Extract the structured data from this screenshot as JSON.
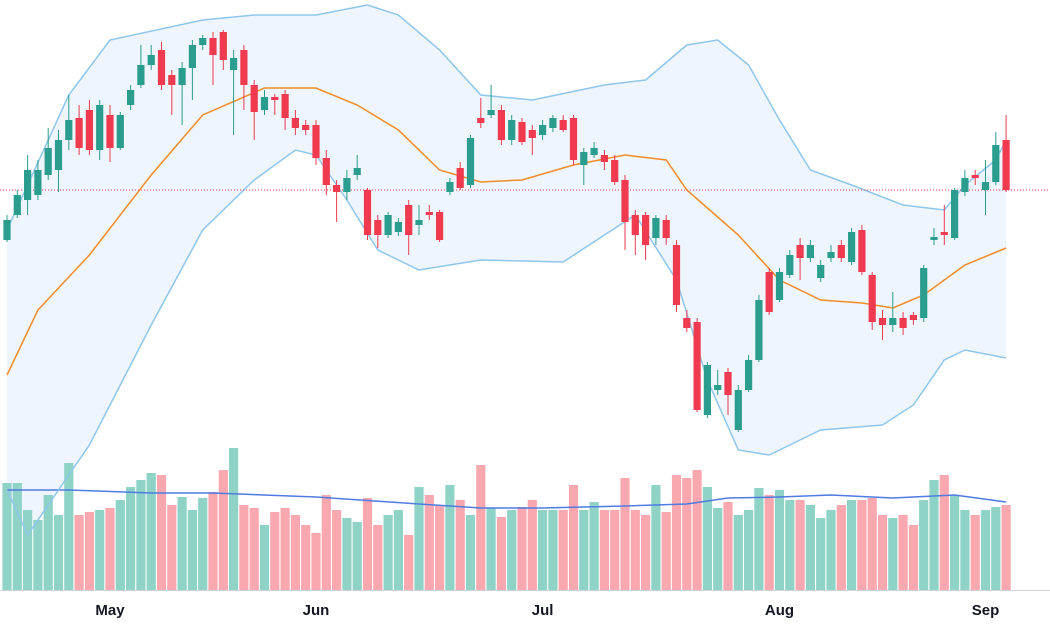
{
  "chart_data": {
    "type": "candlestick",
    "categories": [
      null,
      null,
      null,
      null,
      null,
      null,
      null,
      null,
      null,
      null,
      "May",
      null,
      null,
      null,
      null,
      null,
      null,
      null,
      null,
      null,
      null,
      null,
      null,
      null,
      null,
      null,
      null,
      null,
      null,
      null,
      "Jun",
      null,
      null,
      null,
      null,
      null,
      null,
      null,
      null,
      null,
      null,
      null,
      null,
      null,
      null,
      null,
      null,
      null,
      null,
      null,
      null,
      null,
      "Jul",
      null,
      null,
      null,
      null,
      null,
      null,
      null,
      null,
      null,
      null,
      null,
      null,
      null,
      null,
      null,
      null,
      null,
      null,
      null,
      null,
      null,
      null,
      "Aug",
      null,
      null,
      null,
      null,
      null,
      null,
      null,
      null,
      null,
      null,
      null,
      null,
      null,
      null,
      null,
      null,
      null,
      null,
      null,
      "Sep",
      null,
      null
    ],
    "open": [
      360,
      385,
      400,
      405,
      425,
      430,
      460,
      482,
      490,
      450,
      485,
      452,
      495,
      515,
      535,
      550,
      525,
      515,
      532,
      555,
      562,
      568,
      530,
      550,
      515,
      490,
      503,
      506,
      482,
      475,
      475,
      442,
      415,
      408,
      425,
      410,
      380,
      365,
      368,
      395,
      375,
      388,
      388,
      408,
      432,
      415,
      482,
      485,
      490,
      460,
      478,
      470,
      465,
      472,
      480,
      482,
      435,
      445,
      445,
      440,
      420,
      385,
      385,
      362,
      380,
      355,
      282,
      278,
      185,
      210,
      228,
      170,
      210,
      240,
      328,
      300,
      325,
      355,
      342,
      322,
      342,
      355,
      338,
      370,
      325,
      282,
      275,
      282,
      285,
      282,
      360,
      368,
      362,
      408,
      425,
      410,
      418,
      460
    ],
    "high": [
      385,
      410,
      445,
      440,
      472,
      470,
      505,
      495,
      500,
      500,
      495,
      488,
      515,
      555,
      555,
      558,
      530,
      538,
      560,
      565,
      568,
      570,
      550,
      555,
      520,
      510,
      506,
      510,
      490,
      480,
      480,
      450,
      420,
      430,
      445,
      412,
      385,
      388,
      382,
      400,
      395,
      395,
      390,
      422,
      438,
      465,
      502,
      515,
      495,
      485,
      482,
      475,
      480,
      485,
      485,
      485,
      452,
      458,
      450,
      445,
      425,
      390,
      388,
      385,
      385,
      360,
      290,
      282,
      238,
      230,
      232,
      215,
      245,
      305,
      332,
      332,
      350,
      362,
      360,
      340,
      355,
      360,
      372,
      375,
      328,
      290,
      308,
      288,
      288,
      335,
      372,
      395,
      412,
      430,
      430,
      440,
      468,
      485
    ],
    "low": [
      358,
      382,
      385,
      400,
      420,
      408,
      450,
      445,
      445,
      440,
      438,
      450,
      490,
      512,
      530,
      510,
      485,
      475,
      500,
      550,
      515,
      530,
      465,
      490,
      460,
      485,
      485,
      470,
      465,
      465,
      435,
      405,
      378,
      400,
      420,
      360,
      352,
      362,
      364,
      345,
      365,
      380,
      358,
      405,
      410,
      412,
      472,
      482,
      455,
      455,
      455,
      445,
      460,
      468,
      468,
      435,
      415,
      442,
      430,
      415,
      350,
      345,
      340,
      355,
      355,
      288,
      268,
      188,
      182,
      205,
      185,
      168,
      208,
      238,
      285,
      298,
      322,
      320,
      338,
      318,
      338,
      338,
      335,
      325,
      270,
      260,
      268,
      265,
      275,
      278,
      355,
      355,
      360,
      404,
      415,
      385,
      415,
      408
    ],
    "close": [
      380,
      405,
      430,
      430,
      452,
      460,
      480,
      452,
      450,
      495,
      452,
      485,
      510,
      535,
      545,
      515,
      515,
      532,
      555,
      562,
      545,
      540,
      542,
      515,
      488,
      503,
      500,
      482,
      472,
      470,
      442,
      415,
      408,
      422,
      432,
      365,
      365,
      385,
      378,
      365,
      380,
      385,
      360,
      418,
      412,
      462,
      477,
      490,
      460,
      480,
      458,
      462,
      475,
      482,
      470,
      440,
      448,
      452,
      438,
      418,
      378,
      365,
      355,
      382,
      362,
      295,
      272,
      190,
      235,
      215,
      205,
      210,
      240,
      300,
      288,
      328,
      345,
      342,
      355,
      335,
      348,
      342,
      368,
      328,
      278,
      275,
      282,
      272,
      280,
      332,
      363,
      365,
      410,
      422,
      422,
      418,
      455,
      410
    ],
    "up_color": "#2a9d8f",
    "down_color": "#ef3a4f",
    "ylim": [
      0,
      600
    ],
    "bands": [
      {
        "color": "#8ec6ec",
        "x": [
          0,
          6,
          10,
          19,
          24,
          30,
          35,
          38,
          42,
          46,
          51,
          58,
          62,
          66,
          69,
          72,
          75,
          78,
          82,
          87,
          91,
          93,
          96,
          97
        ],
        "values": [
          370,
          505,
          560,
          580,
          585,
          585,
          595,
          585,
          550,
          505,
          500,
          515,
          520,
          555,
          560,
          535,
          480,
          430,
          415,
          395,
          390,
          415,
          440,
          460
        ]
      },
      {
        "color": "#f28c28",
        "x": [
          0,
          3,
          8,
          14,
          19,
          25,
          30,
          34,
          38,
          42,
          46,
          50,
          55,
          60,
          64,
          66,
          71,
          75,
          79,
          83,
          86,
          89,
          93,
          97
        ],
        "values": [
          225,
          290,
          345,
          425,
          485,
          512,
          512,
          495,
          470,
          430,
          418,
          420,
          435,
          445,
          440,
          410,
          365,
          320,
          300,
          297,
          292,
          305,
          335,
          352
        ]
      },
      {
        "color": "#8ec6ec",
        "x": [
          0,
          2,
          4,
          8,
          14,
          19,
          24,
          28,
          30,
          33,
          36,
          40,
          46,
          54,
          58,
          61,
          65,
          68,
          71,
          74,
          79,
          85,
          88,
          91,
          93,
          97
        ],
        "values": [
          110,
          65,
          95,
          155,
          275,
          370,
          420,
          450,
          445,
          400,
          350,
          330,
          340,
          338,
          365,
          385,
          320,
          220,
          150,
          145,
          170,
          175,
          195,
          240,
          250,
          242
        ]
      }
    ],
    "band_fill": "#eef5fc",
    "last_price_line_color": "#ef3a4f",
    "volume": {
      "values": [
        107,
        107,
        80,
        70,
        95,
        75,
        127,
        75,
        78,
        80,
        82,
        90,
        103,
        110,
        117,
        115,
        85,
        93,
        80,
        92,
        98,
        120,
        142,
        85,
        82,
        65,
        78,
        82,
        75,
        65,
        57,
        95,
        80,
        72,
        68,
        92,
        65,
        75,
        80,
        55,
        103,
        95,
        85,
        105,
        90,
        75,
        125,
        82,
        73,
        80,
        83,
        90,
        80,
        80,
        80,
        105,
        80,
        88,
        80,
        80,
        112,
        80,
        75,
        105,
        78,
        115,
        112,
        120,
        103,
        82,
        88,
        75,
        80,
        102,
        95,
        100,
        90,
        90,
        85,
        72,
        80,
        85,
        90,
        90,
        92,
        75,
        72,
        75,
        65,
        90,
        110,
        115,
        95,
        80,
        75,
        80,
        83,
        85
      ],
      "ylim": [
        0,
        200
      ],
      "up_color": "#8fd3c6",
      "down_color": "#f8a8ae",
      "ma": {
        "color": "#4f7be3",
        "x": [
          0,
          6,
          14,
          20,
          30,
          40,
          46,
          52,
          60,
          66,
          70,
          75,
          80,
          86,
          92,
          97
        ],
        "values": [
          100,
          100,
          97,
          97,
          93,
          86,
          82,
          82,
          84,
          86,
          92,
          93,
          95,
          92,
          95,
          88
        ]
      }
    }
  }
}
